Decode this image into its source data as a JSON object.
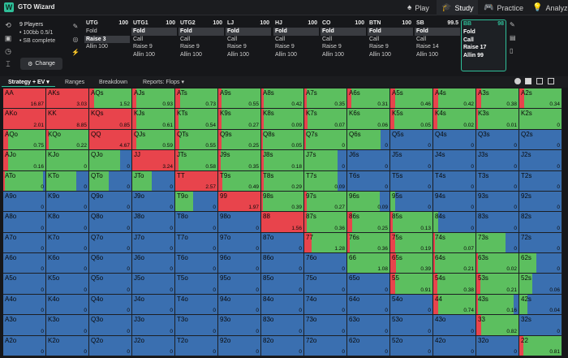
{
  "app": {
    "name": "GTO Wizard"
  },
  "nav": [
    {
      "label": "Play",
      "icon": "spade-icon"
    },
    {
      "label": "Study",
      "icon": "graduation-cap-icon",
      "active": true
    },
    {
      "label": "Practice",
      "icon": "gamepad-icon"
    },
    {
      "label": "Analyze",
      "icon": "lightbulb-icon"
    }
  ],
  "game": {
    "players": "9 Players",
    "stakes": "• 100bb 0.5/1",
    "status": "• SB complete",
    "change_label": "Change"
  },
  "seats": [
    {
      "pos": "UTG",
      "stack": "100",
      "actions": [
        "Fold",
        "Raise 3",
        "Allin 100"
      ],
      "selected": 1
    },
    {
      "pos": "UTG1",
      "stack": "100",
      "actions": [
        "Fold",
        "Call",
        "Raise 9",
        "Allin 100"
      ],
      "selected": 0
    },
    {
      "pos": "UTG2",
      "stack": "100",
      "actions": [
        "Fold",
        "Call",
        "Raise 9",
        "Allin 100"
      ],
      "selected": 0
    },
    {
      "pos": "LJ",
      "stack": "100",
      "actions": [
        "Fold",
        "Call",
        "Raise 9",
        "Allin 100"
      ],
      "selected": 0
    },
    {
      "pos": "HJ",
      "stack": "100",
      "actions": [
        "Fold",
        "Call",
        "Raise 9",
        "Allin 100"
      ],
      "selected": 0
    },
    {
      "pos": "CO",
      "stack": "100",
      "actions": [
        "Fold",
        "Call",
        "Raise 9",
        "Allin 100"
      ],
      "selected": 0
    },
    {
      "pos": "BTN",
      "stack": "100",
      "actions": [
        "Fold",
        "Call",
        "Raise 9",
        "Allin 100"
      ],
      "selected": 0
    },
    {
      "pos": "SB",
      "stack": "99.5",
      "actions": [
        "Fold",
        "Call",
        "Raise 14",
        "Allin 100"
      ],
      "selected": 0
    },
    {
      "pos": "BB",
      "stack": "98",
      "actions": [
        "Fold",
        "Call",
        "Raise 17",
        "Allin 99"
      ],
      "selected": -1,
      "current": true
    }
  ],
  "tabs": [
    {
      "label": "Strategy + EV ▾",
      "active": true
    },
    {
      "label": "Ranges"
    },
    {
      "label": "Breakdown"
    },
    {
      "label": "Reports: Flops ▾"
    }
  ],
  "colors": {
    "raise": "#e8444c",
    "call": "#5cbf5f",
    "fold": "#3a6fb0",
    "accent": "#2fbf99"
  },
  "matrix": {
    "hands": [
      [
        "AA",
        "AKs",
        "AQs",
        "AJs",
        "ATs",
        "A9s",
        "A8s",
        "A7s",
        "A6s",
        "A5s",
        "A4s",
        "A3s",
        "A2s"
      ],
      [
        "AKo",
        "KK",
        "KQs",
        "KJs",
        "KTs",
        "K9s",
        "K8s",
        "K7s",
        "K6s",
        "K5s",
        "K4s",
        "K3s",
        "K2s"
      ],
      [
        "AQo",
        "KQo",
        "QQ",
        "QJs",
        "QTs",
        "Q9s",
        "Q8s",
        "Q7s",
        "Q6s",
        "Q5s",
        "Q4s",
        "Q3s",
        "Q2s"
      ],
      [
        "AJo",
        "KJo",
        "QJo",
        "JJ",
        "JTs",
        "J9s",
        "J8s",
        "J7s",
        "J6s",
        "J5s",
        "J4s",
        "J3s",
        "J2s"
      ],
      [
        "ATo",
        "KTo",
        "QTo",
        "JTo",
        "TT",
        "T9s",
        "T8s",
        "T7s",
        "T6s",
        "T5s",
        "T4s",
        "T3s",
        "T2s"
      ],
      [
        "A9o",
        "K9o",
        "Q9o",
        "J9o",
        "T9o",
        "99",
        "98s",
        "97s",
        "96s",
        "95s",
        "94s",
        "93s",
        "92s"
      ],
      [
        "A8o",
        "K8o",
        "Q8o",
        "J8o",
        "T8o",
        "98o",
        "88",
        "87s",
        "86s",
        "85s",
        "84s",
        "83s",
        "82s"
      ],
      [
        "A7o",
        "K7o",
        "Q7o",
        "J7o",
        "T7o",
        "97o",
        "87o",
        "77",
        "76s",
        "75s",
        "74s",
        "73s",
        "72s"
      ],
      [
        "A6o",
        "K6o",
        "Q6o",
        "J6o",
        "T6o",
        "96o",
        "86o",
        "76o",
        "66",
        "65s",
        "64s",
        "63s",
        "62s"
      ],
      [
        "A5o",
        "K5o",
        "Q5o",
        "J5o",
        "T5o",
        "95o",
        "85o",
        "75o",
        "65o",
        "55",
        "54s",
        "53s",
        "52s"
      ],
      [
        "A4o",
        "K4o",
        "Q4o",
        "J4o",
        "T4o",
        "94o",
        "84o",
        "74o",
        "64o",
        "54o",
        "44",
        "43s",
        "42s"
      ],
      [
        "A3o",
        "K3o",
        "Q3o",
        "J3o",
        "T3o",
        "93o",
        "83o",
        "73o",
        "63o",
        "53o",
        "43o",
        "33",
        "32s"
      ],
      [
        "A2o",
        "K2o",
        "Q2o",
        "J2o",
        "T2o",
        "92o",
        "82o",
        "72o",
        "62o",
        "52o",
        "42o",
        "32o",
        "22"
      ]
    ],
    "ev": [
      [
        "16.87",
        "3.03",
        "1.52",
        "0.93",
        "0.73",
        "0.55",
        "0.42",
        "0.35",
        "0.31",
        "0.46",
        "0.42",
        "0.38",
        "0.34"
      ],
      [
        "2.01",
        "8.85",
        "0.85",
        "0.61",
        "0.54",
        "0.27",
        "0.09",
        "0.07",
        "0.06",
        "0.05",
        "0.02",
        "0.01",
        "0"
      ],
      [
        "0.75",
        "0.22",
        "4.67",
        "0.59",
        "0.55",
        "0.25",
        "0.05",
        "0",
        "0",
        "0",
        "0",
        "0",
        "0"
      ],
      [
        "0.16",
        "0",
        "0",
        "3.24",
        "0.58",
        "0.35",
        "0.18",
        "0",
        "0",
        "0",
        "0",
        "0",
        "0"
      ],
      [
        "0",
        "0",
        "0",
        "0",
        "2.57",
        "0.49",
        "0.29",
        "0.09",
        "0",
        "0",
        "0",
        "0",
        "0"
      ],
      [
        "0",
        "0",
        "0",
        "0",
        "0",
        "1.97",
        "0.39",
        "0.27",
        "0.09",
        "0",
        "0",
        "0",
        "0"
      ],
      [
        "0",
        "0",
        "0",
        "0",
        "0",
        "0",
        "1.56",
        "0.36",
        "0.25",
        "0.13",
        "0",
        "0",
        "0"
      ],
      [
        "0",
        "0",
        "0",
        "0",
        "0",
        "0",
        "0",
        "1.28",
        "0.36",
        "0.19",
        "0.07",
        "0",
        "0"
      ],
      [
        "0",
        "0",
        "0",
        "0",
        "0",
        "0",
        "0",
        "0",
        "1.08",
        "0.39",
        "0.21",
        "0.02",
        "0"
      ],
      [
        "0",
        "0",
        "0",
        "0",
        "0",
        "0",
        "0",
        "0",
        "0",
        "0.91",
        "0.38",
        "0.21",
        "0.06"
      ],
      [
        "0",
        "0",
        "0",
        "0",
        "0",
        "0",
        "0",
        "0",
        "0",
        "0",
        "0.74",
        "0.16",
        "0.04"
      ],
      [
        "0",
        "0",
        "0",
        "0",
        "0",
        "0",
        "0",
        "0",
        "0",
        "0",
        "0",
        "0.82",
        "0"
      ],
      [
        "0",
        "0",
        "0",
        "0",
        "0",
        "0",
        "0",
        "0",
        "0",
        "0",
        "0",
        "0",
        "0.81"
      ]
    ],
    "mix": [
      [
        [
          1,
          0,
          0
        ],
        [
          1,
          0,
          0
        ],
        [
          0.12,
          0.88,
          0
        ],
        [
          0.1,
          0.9,
          0
        ],
        [
          0.12,
          0.88,
          0
        ],
        [
          0.08,
          0.92,
          0
        ],
        [
          0.06,
          0.94,
          0
        ],
        [
          0.06,
          0.94,
          0
        ],
        [
          0.1,
          0.9,
          0
        ],
        [
          0.12,
          0.88,
          0
        ],
        [
          0.12,
          0.88,
          0
        ],
        [
          0.12,
          0.88,
          0
        ],
        [
          0.12,
          0.88,
          0
        ]
      ],
      [
        [
          1,
          0,
          0
        ],
        [
          1,
          0,
          0
        ],
        [
          1,
          0,
          0
        ],
        [
          0.1,
          0.9,
          0
        ],
        [
          0.08,
          0.92,
          0
        ],
        [
          0.08,
          0.92,
          0
        ],
        [
          0.06,
          0.94,
          0
        ],
        [
          0.08,
          0.92,
          0
        ],
        [
          0,
          1,
          0
        ],
        [
          0.1,
          0.9,
          0
        ],
        [
          0.1,
          0.9,
          0
        ],
        [
          0.04,
          0.96,
          0
        ],
        [
          0,
          1,
          0
        ]
      ],
      [
        [
          0.12,
          0.88,
          0
        ],
        [
          0.06,
          0.94,
          0
        ],
        [
          1,
          0,
          0
        ],
        [
          0.1,
          0.9,
          0
        ],
        [
          0.1,
          0.9,
          0
        ],
        [
          0.08,
          0.92,
          0
        ],
        [
          0.04,
          0.96,
          0
        ],
        [
          0.04,
          0.96,
          0
        ],
        [
          0,
          0.78,
          0.22
        ],
        [
          0,
          0,
          1
        ],
        [
          0,
          0,
          1
        ],
        [
          0,
          0,
          1
        ],
        [
          0,
          0,
          1
        ]
      ],
      [
        [
          0.12,
          0.88,
          0
        ],
        [
          0,
          1,
          0
        ],
        [
          0,
          0.74,
          0.26
        ],
        [
          1,
          0,
          0
        ],
        [
          0.08,
          0.92,
          0
        ],
        [
          0.06,
          0.94,
          0
        ],
        [
          0.06,
          0.94,
          0
        ],
        [
          0,
          0.78,
          0.22
        ],
        [
          0,
          0,
          1
        ],
        [
          0,
          0,
          1
        ],
        [
          0,
          0,
          1
        ],
        [
          0,
          0,
          1
        ],
        [
          0,
          0,
          1
        ]
      ],
      [
        [
          0.04,
          0.9,
          0.06
        ],
        [
          0,
          0.72,
          0.28
        ],
        [
          0,
          0.46,
          0.54
        ],
        [
          0,
          0.46,
          0.54
        ],
        [
          1,
          0,
          0
        ],
        [
          0.1,
          0.9,
          0
        ],
        [
          0.06,
          0.94,
          0
        ],
        [
          0,
          0.78,
          0.22
        ],
        [
          0,
          0,
          1
        ],
        [
          0,
          0,
          1
        ],
        [
          0,
          0,
          1
        ],
        [
          0,
          0,
          1
        ],
        [
          0,
          0,
          1
        ]
      ],
      [
        [
          0,
          0,
          1
        ],
        [
          0,
          0,
          1
        ],
        [
          0,
          0,
          1
        ],
        [
          0,
          0,
          1
        ],
        [
          0,
          0.42,
          0.58
        ],
        [
          1,
          0,
          0
        ],
        [
          0.04,
          0.96,
          0
        ],
        [
          0.06,
          0.94,
          0
        ],
        [
          0,
          0.76,
          0.24
        ],
        [
          0,
          0.12,
          0.88
        ],
        [
          0,
          0,
          1
        ],
        [
          0,
          0,
          1
        ],
        [
          0,
          0,
          1
        ]
      ],
      [
        [
          0,
          0,
          1
        ],
        [
          0,
          0,
          1
        ],
        [
          0,
          0,
          1
        ],
        [
          0,
          0,
          1
        ],
        [
          0,
          0,
          1
        ],
        [
          0,
          0,
          1
        ],
        [
          1,
          0,
          0
        ],
        [
          0.06,
          0.94,
          0
        ],
        [
          0.12,
          0.88,
          0
        ],
        [
          0.06,
          0.94,
          0
        ],
        [
          0,
          0.12,
          0.88
        ],
        [
          0,
          0,
          1
        ],
        [
          0,
          0,
          1
        ]
      ],
      [
        [
          0,
          0,
          1
        ],
        [
          0,
          0,
          1
        ],
        [
          0,
          0,
          1
        ],
        [
          0,
          0,
          1
        ],
        [
          0,
          0,
          1
        ],
        [
          0,
          0,
          1
        ],
        [
          0,
          0,
          1
        ],
        [
          0.18,
          0.82,
          0
        ],
        [
          0.06,
          0.94,
          0
        ],
        [
          0.12,
          0.88,
          0
        ],
        [
          0.04,
          0.96,
          0
        ],
        [
          0,
          0.7,
          0.3
        ],
        [
          0,
          0,
          1
        ]
      ],
      [
        [
          0,
          0,
          1
        ],
        [
          0,
          0,
          1
        ],
        [
          0,
          0,
          1
        ],
        [
          0,
          0,
          1
        ],
        [
          0,
          0,
          1
        ],
        [
          0,
          0,
          1
        ],
        [
          0,
          0,
          1
        ],
        [
          0,
          0,
          1
        ],
        [
          0,
          1,
          0
        ],
        [
          0.14,
          0.86,
          0
        ],
        [
          0.04,
          0.96,
          0
        ],
        [
          0.04,
          0.96,
          0
        ],
        [
          0,
          0.4,
          0.6
        ]
      ],
      [
        [
          0,
          0,
          1
        ],
        [
          0,
          0,
          1
        ],
        [
          0,
          0,
          1
        ],
        [
          0,
          0,
          1
        ],
        [
          0,
          0,
          1
        ],
        [
          0,
          0,
          1
        ],
        [
          0,
          0,
          1
        ],
        [
          0,
          0,
          1
        ],
        [
          0,
          0,
          1
        ],
        [
          0.12,
          0.88,
          0
        ],
        [
          0.1,
          0.9,
          0
        ],
        [
          0.1,
          0.9,
          0
        ],
        [
          0,
          0.3,
          0.7
        ]
      ],
      [
        [
          0,
          0,
          1
        ],
        [
          0,
          0,
          1
        ],
        [
          0,
          0,
          1
        ],
        [
          0,
          0,
          1
        ],
        [
          0,
          0,
          1
        ],
        [
          0,
          0,
          1
        ],
        [
          0,
          0,
          1
        ],
        [
          0,
          0,
          1
        ],
        [
          0,
          0,
          1
        ],
        [
          0,
          0,
          1
        ],
        [
          0.12,
          0.88,
          0
        ],
        [
          0.04,
          0.84,
          0.12
        ],
        [
          0,
          0.2,
          0.8
        ]
      ],
      [
        [
          0,
          0,
          1
        ],
        [
          0,
          0,
          1
        ],
        [
          0,
          0,
          1
        ],
        [
          0,
          0,
          1
        ],
        [
          0,
          0,
          1
        ],
        [
          0,
          0,
          1
        ],
        [
          0,
          0,
          1
        ],
        [
          0,
          0,
          1
        ],
        [
          0,
          0,
          1
        ],
        [
          0,
          0,
          1
        ],
        [
          0,
          0,
          1
        ],
        [
          0.12,
          0.88,
          0
        ],
        [
          0,
          0,
          1
        ]
      ],
      [
        [
          0,
          0,
          1
        ],
        [
          0,
          0,
          1
        ],
        [
          0,
          0,
          1
        ],
        [
          0,
          0,
          1
        ],
        [
          0,
          0,
          1
        ],
        [
          0,
          0,
          1
        ],
        [
          0,
          0,
          1
        ],
        [
          0,
          0,
          1
        ],
        [
          0,
          0,
          1
        ],
        [
          0,
          0,
          1
        ],
        [
          0,
          0,
          1
        ],
        [
          0,
          0,
          1
        ],
        [
          0.1,
          0.9,
          0
        ]
      ]
    ]
  }
}
